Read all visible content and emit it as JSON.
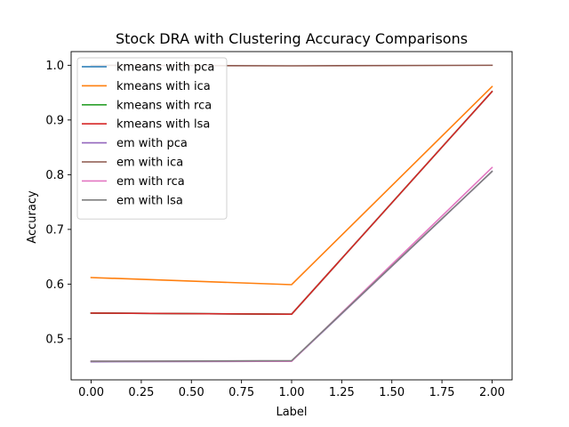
{
  "chart_data": {
    "type": "line",
    "title": "Stock DRA with Clustering Accuracy Comparisons",
    "xlabel": "Label",
    "ylabel": "Accuracy",
    "x": [
      0,
      1,
      2
    ],
    "xlim": [
      -0.1,
      2.1
    ],
    "ylim": [
      0.425,
      1.025
    ],
    "xticks": [
      0.0,
      0.25,
      0.5,
      0.75,
      1.0,
      1.25,
      1.5,
      1.75,
      2.0
    ],
    "xtick_labels": [
      "0.00",
      "0.25",
      "0.50",
      "0.75",
      "1.00",
      "1.25",
      "1.50",
      "1.75",
      "2.00"
    ],
    "yticks": [
      0.5,
      0.6,
      0.7,
      0.8,
      0.9,
      1.0
    ],
    "ytick_labels": [
      "0.5",
      "0.6",
      "0.7",
      "0.8",
      "0.9",
      "1.0"
    ],
    "grid": false,
    "legend_position": "upper-left",
    "series": [
      {
        "name": "kmeans with pca",
        "color": "#1f77b4",
        "values": [
          0.547,
          0.545,
          0.952
        ]
      },
      {
        "name": "kmeans with ica",
        "color": "#ff7f0e",
        "values": [
          0.612,
          0.599,
          0.961
        ]
      },
      {
        "name": "kmeans with rca",
        "color": "#2ca02c",
        "values": [
          0.547,
          0.545,
          0.952
        ]
      },
      {
        "name": "kmeans with lsa",
        "color": "#d62728",
        "values": [
          0.547,
          0.545,
          0.952
        ]
      },
      {
        "name": "em with pca",
        "color": "#9467bd",
        "values": [
          0.458,
          0.459,
          0.806
        ]
      },
      {
        "name": "em with ica",
        "color": "#8c564b",
        "values": [
          1.0,
          0.999,
          1.0
        ]
      },
      {
        "name": "em with rca",
        "color": "#e377c2",
        "values": [
          0.459,
          0.459,
          0.813
        ]
      },
      {
        "name": "em with lsa",
        "color": "#7f7f7f",
        "values": [
          0.459,
          0.46,
          0.806
        ]
      }
    ]
  }
}
